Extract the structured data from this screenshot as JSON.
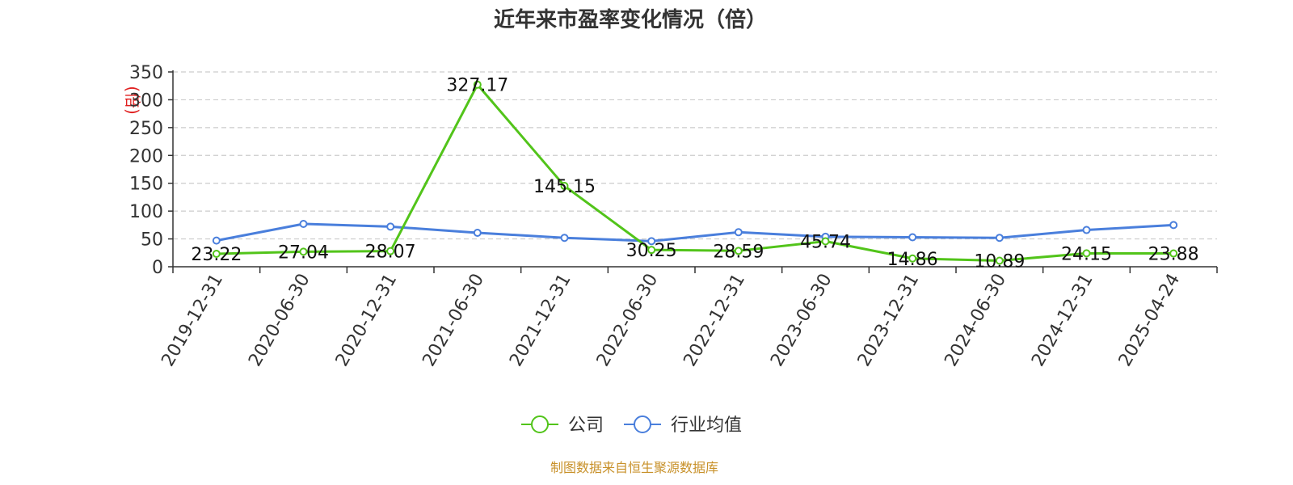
{
  "chart_data": {
    "type": "line",
    "title": "近年来市盈率变化情况（倍）",
    "ylabel": "(倍)",
    "ylim": [
      0,
      350
    ],
    "yticks": [
      0,
      50,
      100,
      150,
      200,
      250,
      300,
      350
    ],
    "grid": true,
    "legend_position": "bottom-center",
    "categories": [
      "2019-12-31",
      "2020-06-30",
      "2020-12-31",
      "2021-06-30",
      "2021-12-31",
      "2022-06-30",
      "2022-12-31",
      "2023-06-30",
      "2023-12-31",
      "2024-06-30",
      "2024-12-31",
      "2025-04-24"
    ],
    "series": [
      {
        "name": "公司",
        "color": "#52c41a",
        "values": [
          23.22,
          27.04,
          28.07,
          327.17,
          145.15,
          30.25,
          28.59,
          45.74,
          14.86,
          10.89,
          24.15,
          23.88
        ],
        "labels": [
          "23.22",
          "27.04",
          "28.07",
          "327.17",
          "145.15",
          "30.25",
          "28.59",
          "45.74",
          "14.86",
          "10.89",
          "24.15",
          "23.88"
        ]
      },
      {
        "name": "行业均值",
        "color": "#4a7fdc",
        "values": [
          47,
          77,
          72,
          61,
          52,
          46,
          62,
          54,
          53,
          52,
          66,
          75
        ]
      }
    ]
  },
  "footer": {
    "source": "制图数据来自恒生聚源数据库",
    "source_color": "#c8912a"
  }
}
